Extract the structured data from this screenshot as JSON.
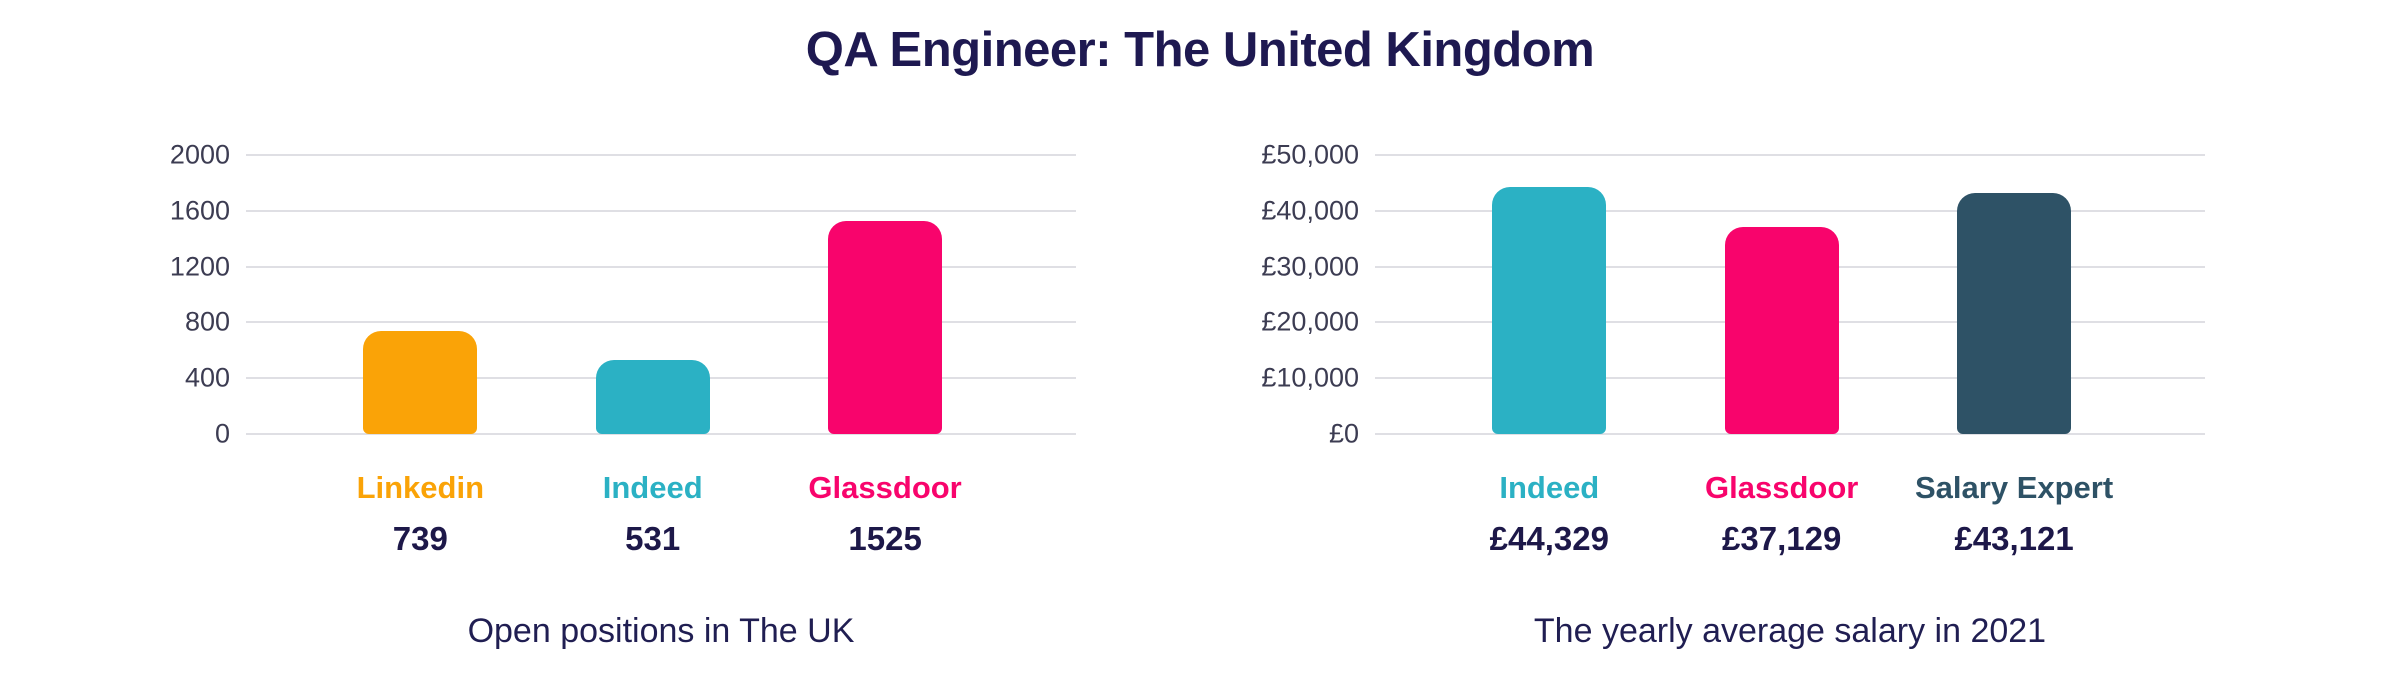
{
  "title": "QA Engineer: The United Kingdom",
  "colors": {
    "background": "#ffffff",
    "title_text": "#1e1951",
    "value_text": "#1d1849",
    "caption_text": "#201e52",
    "tick_text": "#3c3c52",
    "gridline": "#dfdfe4"
  },
  "chart_data": [
    {
      "type": "bar",
      "title": "Open positions in The UK",
      "categories": [
        "Linkedin",
        "Indeed",
        "Glassdoor"
      ],
      "values": [
        739,
        531,
        1525
      ],
      "value_labels": [
        "739",
        "531",
        "1525"
      ],
      "bar_colors": [
        "#faa307",
        "#2bb1c4",
        "#f8046c"
      ],
      "xlabel": "",
      "ylabel": "",
      "ylim": [
        0,
        2000
      ],
      "yticks": [
        0,
        400,
        800,
        1200,
        1600,
        2000
      ],
      "ytick_labels": [
        "0",
        "400",
        "800",
        "1200",
        "1600",
        "2000"
      ],
      "grid": true,
      "legend_position": "none"
    },
    {
      "type": "bar",
      "title": "The yearly average salary in 2021",
      "categories": [
        "Indeed",
        "Glassdoor",
        "Salary Expert"
      ],
      "values": [
        44329,
        37129,
        43121
      ],
      "value_labels": [
        "£44,329",
        "£37,129",
        "£43,121"
      ],
      "bar_colors": [
        "#2bb1c4",
        "#f8046c",
        "#2e5266"
      ],
      "xlabel": "",
      "ylabel": "",
      "ylim": [
        0,
        50000
      ],
      "yticks": [
        0,
        10000,
        20000,
        30000,
        40000,
        50000
      ],
      "ytick_labels": [
        "£0",
        "£10,000",
        "£20,000",
        "£30,000",
        "£40,000",
        "£50,000"
      ],
      "grid": true,
      "legend_position": "none"
    }
  ]
}
